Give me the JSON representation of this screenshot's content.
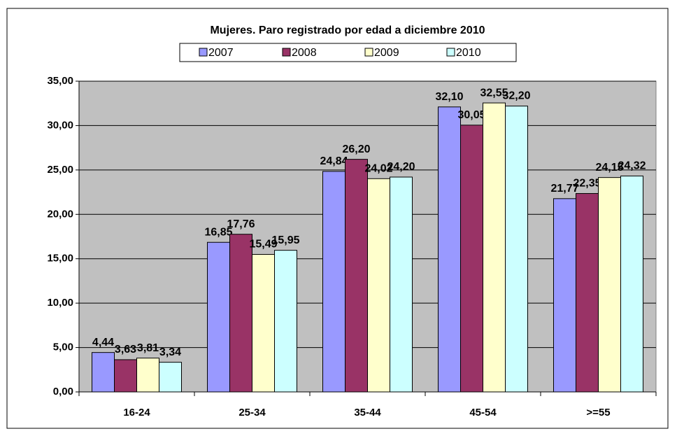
{
  "chart_data": {
    "type": "bar",
    "title": "Mujeres. Paro registrado por edad a diciembre 2010",
    "categories": [
      "16-24",
      "25-34",
      "35-44",
      "45-54",
      ">=55"
    ],
    "series": [
      {
        "name": "2007",
        "color": "#9999ff",
        "values": [
          4.44,
          16.85,
          24.84,
          32.1,
          21.77
        ],
        "value_labels": [
          "4,44",
          "16,85",
          "24,84",
          "32,10",
          "21,77"
        ]
      },
      {
        "name": "2008",
        "color": "#993366",
        "values": [
          3.63,
          17.76,
          26.2,
          30.05,
          22.35
        ],
        "value_labels": [
          "3,63",
          "17,76",
          "26,20",
          "30,05",
          "22,35"
        ]
      },
      {
        "name": "2009",
        "color": "#ffffcc",
        "values": [
          3.81,
          15.49,
          24.02,
          32.55,
          24.15
        ],
        "value_labels": [
          "3,81",
          "15,49",
          "24,02",
          "32,55",
          "24,15"
        ]
      },
      {
        "name": "2010",
        "color": "#ccffff",
        "values": [
          3.34,
          15.95,
          24.2,
          32.2,
          24.32
        ],
        "value_labels": [
          "3,34",
          "15,95",
          "24,20",
          "32,20",
          "24,32"
        ]
      }
    ],
    "ylim": [
      0,
      35
    ],
    "yticks": [
      {
        "value": 0,
        "label": "0,00"
      },
      {
        "value": 5,
        "label": "5,00"
      },
      {
        "value": 10,
        "label": "10,00"
      },
      {
        "value": 15,
        "label": "15,00"
      },
      {
        "value": 20,
        "label": "20,00"
      },
      {
        "value": 25,
        "label": "25,00"
      },
      {
        "value": 30,
        "label": "30,00"
      },
      {
        "value": 35,
        "label": "35,00"
      }
    ],
    "grid": true,
    "legend": "top"
  }
}
